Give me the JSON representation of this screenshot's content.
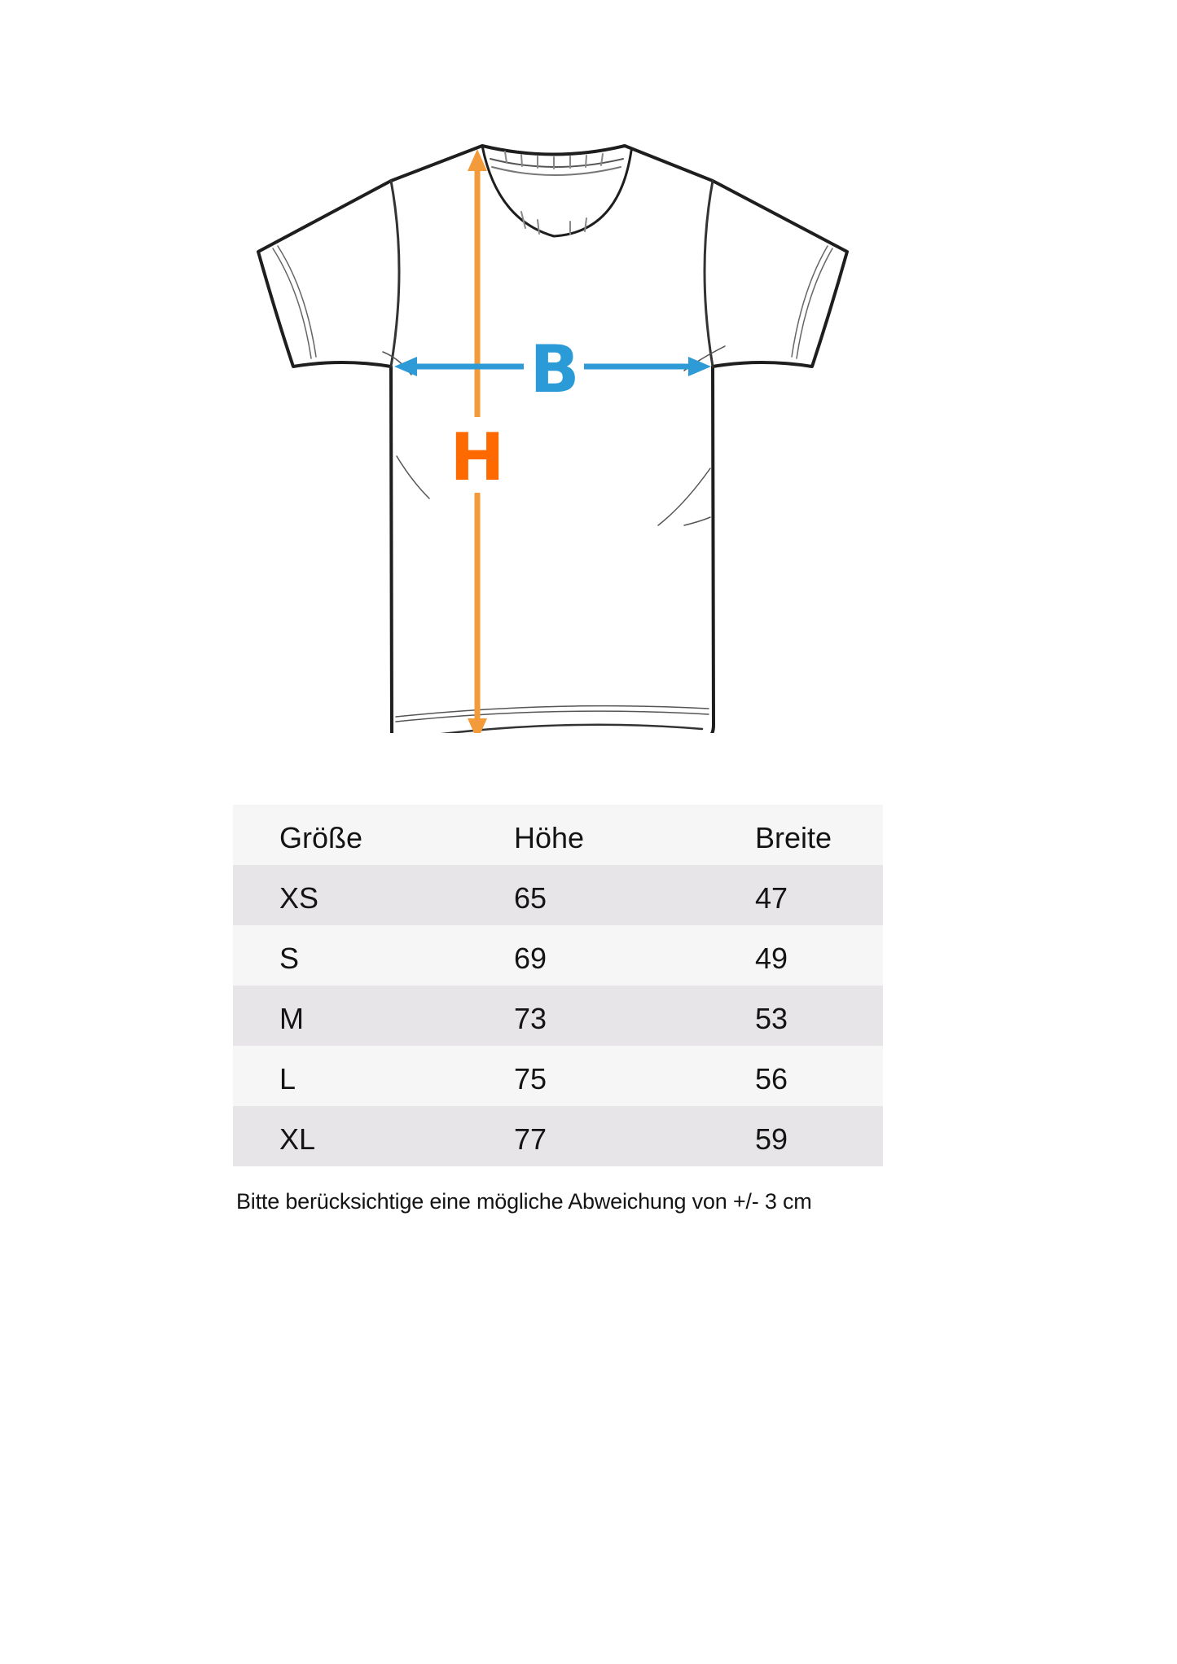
{
  "diagram": {
    "height_label": "H",
    "width_label": "B",
    "colors": {
      "height_arrow": "#f39a3a",
      "height_letter": "#ff6a00",
      "width_arrow": "#2e9bd6",
      "width_letter": "#2a9bd6",
      "outline": "#1e1e1e"
    }
  },
  "table": {
    "headers": [
      "Größe",
      "Höhe",
      "Breite"
    ],
    "rows": [
      [
        "XS",
        "65",
        "47"
      ],
      [
        "S",
        "69",
        "49"
      ],
      [
        "M",
        "73",
        "53"
      ],
      [
        "L",
        "75",
        "56"
      ],
      [
        "XL",
        "77",
        "59"
      ]
    ],
    "colors": {
      "header_bg": "#f7f6f7",
      "alt_row_bg": "#e7e5e7"
    }
  },
  "note": "Bitte berücksichtige eine mögliche Abweichung von +/- 3 cm"
}
